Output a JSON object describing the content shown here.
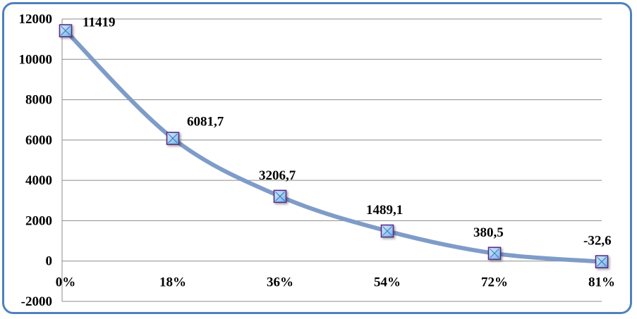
{
  "chart_data": {
    "type": "line",
    "title": "",
    "xlabel": "",
    "ylabel": "",
    "categories": [
      "0%",
      "18%",
      "36%",
      "54%",
      "72%",
      "81%"
    ],
    "series": [
      {
        "values": [
          11419,
          6081.7,
          3206.7,
          1489.1,
          380.5,
          -32.6
        ],
        "labels": [
          "11419",
          "6081,7",
          "3206,7",
          "1489,1",
          "380,5",
          "-32,6"
        ]
      }
    ],
    "ylim": [
      -2000,
      12000
    ],
    "yticks": [
      -2000,
      0,
      2000,
      4000,
      6000,
      8000,
      10000,
      12000
    ],
    "grid": true,
    "legend": "none",
    "colors": {
      "line": "#7f9cc8",
      "marker_fill": "#9fd0f5",
      "marker_border": "#5b2a86",
      "grid": "#8c8c8c",
      "frame": "#4f81bd"
    }
  }
}
